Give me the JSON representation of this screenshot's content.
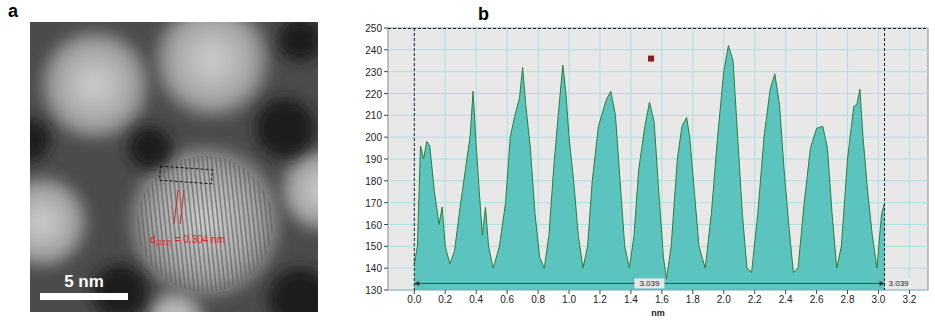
{
  "image_panel": {
    "panel_label": "a",
    "scale_bar": "5 nm",
    "d_symbol": "d",
    "d_subscript": "(222)",
    "d_text": " = 0.304 nm"
  },
  "chart_data": {
    "panel_label": "b",
    "type": "area",
    "x_label": "nm",
    "color": "#5cc4bf",
    "grid": true,
    "x": [
      0.0,
      0.02,
      0.04,
      0.06,
      0.08,
      0.1,
      0.13,
      0.16,
      0.18,
      0.2,
      0.23,
      0.26,
      0.3,
      0.34,
      0.36,
      0.38,
      0.4,
      0.42,
      0.44,
      0.46,
      0.48,
      0.51,
      0.55,
      0.59,
      0.62,
      0.65,
      0.68,
      0.7,
      0.72,
      0.75,
      0.78,
      0.81,
      0.84,
      0.87,
      0.9,
      0.93,
      0.96,
      0.98,
      1.0,
      1.03,
      1.06,
      1.09,
      1.12,
      1.15,
      1.19,
      1.24,
      1.27,
      1.3,
      1.33,
      1.36,
      1.39,
      1.42,
      1.45,
      1.49,
      1.52,
      1.55,
      1.58,
      1.61,
      1.63,
      1.66,
      1.7,
      1.73,
      1.76,
      1.78,
      1.81,
      1.84,
      1.88,
      1.92,
      1.96,
      2.0,
      2.03,
      2.06,
      2.09,
      2.12,
      2.15,
      2.18,
      2.22,
      2.26,
      2.3,
      2.33,
      2.36,
      2.39,
      2.42,
      2.45,
      2.48,
      2.52,
      2.56,
      2.6,
      2.64,
      2.67,
      2.7,
      2.73,
      2.76,
      2.8,
      2.84,
      2.86,
      2.88,
      2.9,
      2.93,
      2.96,
      2.99,
      3.02,
      3.04
    ],
    "values": [
      142,
      150,
      196,
      190,
      198,
      196,
      175,
      160,
      168,
      150,
      142,
      148,
      170,
      190,
      200,
      221,
      196,
      175,
      155,
      168,
      150,
      140,
      150,
      170,
      200,
      210,
      218,
      232,
      215,
      195,
      165,
      145,
      140,
      155,
      185,
      210,
      233,
      220,
      200,
      180,
      155,
      140,
      150,
      180,
      205,
      217,
      221,
      210,
      180,
      150,
      140,
      155,
      185,
      205,
      216,
      207,
      175,
      145,
      135,
      150,
      190,
      205,
      209,
      200,
      175,
      150,
      140,
      165,
      200,
      230,
      242,
      235,
      200,
      165,
      140,
      138,
      165,
      200,
      222,
      229,
      215,
      185,
      160,
      138,
      140,
      170,
      195,
      204,
      205,
      195,
      165,
      140,
      150,
      190,
      214,
      215,
      222,
      200,
      175,
      155,
      140,
      165,
      170
    ],
    "xlim": [
      -0.17,
      3.32
    ],
    "ylim": [
      130,
      250
    ],
    "xticks": [
      {
        "value": 0,
        "label": "0.0"
      },
      {
        "value": 0.2,
        "label": "0.2"
      },
      {
        "value": 0.4,
        "label": "0.4"
      },
      {
        "value": 0.6,
        "label": "0.6"
      },
      {
        "value": 0.8,
        "label": "0.8"
      },
      {
        "value": 1,
        "label": "1.0"
      },
      {
        "value": 1.2,
        "label": "1.2"
      },
      {
        "value": 1.4,
        "label": "1.4"
      },
      {
        "value": 1.6,
        "label": "1.6"
      },
      {
        "value": 1.8,
        "label": "1.8"
      },
      {
        "value": 2,
        "label": "2.0"
      },
      {
        "value": 2.2,
        "label": "2.2"
      },
      {
        "value": 2.4,
        "label": "2.4"
      },
      {
        "value": 2.6,
        "label": "2.6"
      },
      {
        "value": 2.8,
        "label": "2.8"
      },
      {
        "value": 3,
        "label": "3.0"
      },
      {
        "value": 3.2,
        "label": "3.2"
      }
    ],
    "yticks": [
      130,
      140,
      150,
      160,
      170,
      180,
      190,
      200,
      210,
      220,
      230,
      240,
      250
    ],
    "cursors": [
      0,
      3.039
    ],
    "measure": {
      "from": 0,
      "to": 3.039,
      "y": 133,
      "label": "3.039"
    },
    "marker_point": {
      "x": 1.53,
      "y": 236
    }
  }
}
